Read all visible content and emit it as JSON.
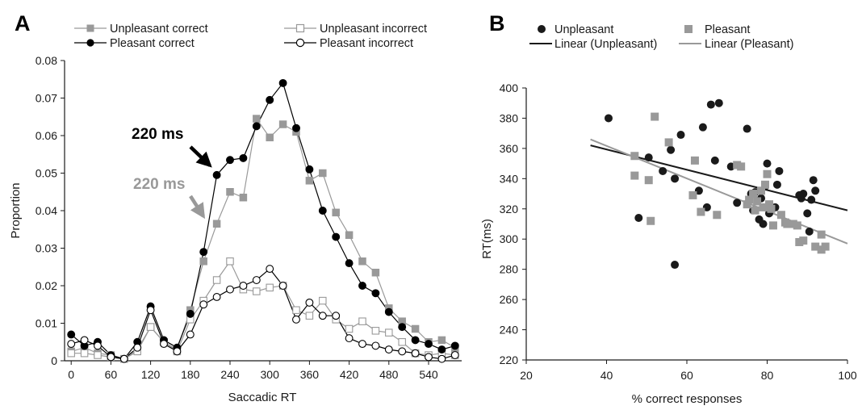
{
  "chart_data": [
    {
      "panel_label": "A",
      "type": "line",
      "xlabel": "Saccadic RT",
      "ylabel": "Proportion",
      "xlim": [
        -10,
        590
      ],
      "ylim": [
        0,
        0.08
      ],
      "x_ticks": [
        0,
        60,
        120,
        180,
        240,
        300,
        360,
        420,
        480,
        540
      ],
      "y_ticks": [
        0,
        0.01,
        0.02,
        0.03,
        0.04,
        0.05,
        0.06,
        0.07,
        0.08
      ],
      "y_tick_labels": [
        "0",
        "0.01",
        "0.02",
        "0.03",
        "0.04",
        "0.05",
        "0.06",
        "0.07",
        "0.08"
      ],
      "grid": false,
      "legend_position": "top",
      "x": [
        0,
        20,
        40,
        60,
        80,
        100,
        120,
        140,
        160,
        180,
        200,
        220,
        240,
        260,
        280,
        300,
        320,
        340,
        360,
        380,
        400,
        420,
        440,
        460,
        480,
        500,
        520,
        540,
        560,
        580
      ],
      "series": [
        {
          "name": "Unpleasant correct",
          "color": "#999999",
          "marker": "square-filled",
          "values": [
            0.0025,
            0.0035,
            0.002,
            0.0015,
            0.0005,
            0.003,
            0.009,
            0.005,
            0.003,
            0.0135,
            0.0265,
            0.0365,
            0.045,
            0.0435,
            0.0645,
            0.0595,
            0.063,
            0.061,
            0.048,
            0.05,
            0.0395,
            0.0335,
            0.0265,
            0.0235,
            0.014,
            0.0105,
            0.0085,
            0.005,
            0.0055,
            0.0035
          ]
        },
        {
          "name": "Unpleasant incorrect",
          "color": "#999999",
          "marker": "square-open",
          "values": [
            0.002,
            0.002,
            0.0015,
            0.001,
            0.0005,
            0.0025,
            0.009,
            0.005,
            0.0025,
            0.011,
            0.016,
            0.0215,
            0.0265,
            0.019,
            0.0185,
            0.0195,
            0.02,
            0.0135,
            0.012,
            0.016,
            0.011,
            0.0085,
            0.0105,
            0.008,
            0.0075,
            0.005,
            0.002,
            0.0015,
            0.002,
            0.0015
          ]
        },
        {
          "name": "Pleasant correct",
          "color": "#000000",
          "marker": "circle-filled",
          "values": [
            0.007,
            0.004,
            0.005,
            0.0015,
            0.0005,
            0.005,
            0.0145,
            0.0055,
            0.0035,
            0.0125,
            0.029,
            0.0495,
            0.0535,
            0.054,
            0.0625,
            0.0695,
            0.074,
            0.062,
            0.051,
            0.04,
            0.033,
            0.026,
            0.02,
            0.018,
            0.013,
            0.009,
            0.0055,
            0.0045,
            0.003,
            0.004
          ]
        },
        {
          "name": "Pleasant incorrect",
          "color": "#000000",
          "marker": "circle-open",
          "values": [
            0.0045,
            0.0055,
            0.004,
            0.001,
            0.0005,
            0.0035,
            0.0135,
            0.0045,
            0.0025,
            0.007,
            0.015,
            0.017,
            0.019,
            0.02,
            0.0215,
            0.0245,
            0.02,
            0.011,
            0.0155,
            0.012,
            0.012,
            0.006,
            0.0045,
            0.004,
            0.003,
            0.0025,
            0.002,
            0.001,
            0.0005,
            0.0015
          ]
        }
      ],
      "annotations": [
        {
          "text": "220 ms",
          "color": "#000000",
          "points_to_series": "Pleasant correct",
          "x": 220
        },
        {
          "text": "220 ms",
          "color": "#999999",
          "points_to_series": "Unpleasant correct",
          "x": 220
        }
      ]
    },
    {
      "panel_label": "B",
      "type": "scatter",
      "xlabel": "% correct responses",
      "ylabel": "RT(ms)",
      "xlim": [
        20,
        100
      ],
      "ylim": [
        220,
        400
      ],
      "x_ticks": [
        20,
        40,
        60,
        80,
        100
      ],
      "y_ticks": [
        220,
        240,
        260,
        280,
        300,
        320,
        340,
        360,
        380,
        400
      ],
      "grid": false,
      "legend_position": "top",
      "series": [
        {
          "name": "Unpleasant",
          "color": "#1a1a1a",
          "marker": "circle-filled",
          "points": [
            [
              40.5,
              380
            ],
            [
              48,
              314
            ],
            [
              50.5,
              354
            ],
            [
              54,
              345
            ],
            [
              56,
              359
            ],
            [
              57,
              283
            ],
            [
              57,
              340
            ],
            [
              58.5,
              369
            ],
            [
              63,
              332
            ],
            [
              64,
              374
            ],
            [
              65,
              321
            ],
            [
              66,
              389
            ],
            [
              67,
              352
            ],
            [
              68,
              390
            ],
            [
              71,
              348
            ],
            [
              72.5,
              324
            ],
            [
              75,
              373
            ],
            [
              76,
              330
            ],
            [
              76.5,
              319
            ],
            [
              77,
              331
            ],
            [
              78,
              313
            ],
            [
              78.5,
              327
            ],
            [
              79,
              310
            ],
            [
              79.5,
              335
            ],
            [
              80,
              350
            ],
            [
              80.5,
              317
            ],
            [
              82,
              321
            ],
            [
              82.5,
              336
            ],
            [
              83,
              345
            ],
            [
              88,
              329
            ],
            [
              88.5,
              327
            ],
            [
              89,
              330
            ],
            [
              90,
              317
            ],
            [
              90.5,
              305
            ],
            [
              91,
              326
            ],
            [
              91.5,
              339
            ],
            [
              92,
              332
            ]
          ]
        },
        {
          "name": "Pleasant",
          "color": "#999999",
          "marker": "square-filled",
          "points": [
            [
              47,
              355
            ],
            [
              47,
              342
            ],
            [
              50.5,
              339
            ],
            [
              51,
              312
            ],
            [
              52,
              381
            ],
            [
              55.5,
              364
            ],
            [
              61.5,
              329
            ],
            [
              62,
              352
            ],
            [
              63.5,
              318
            ],
            [
              67.5,
              316
            ],
            [
              72.5,
              349
            ],
            [
              73.5,
              348
            ],
            [
              75,
              323
            ],
            [
              75.5,
              326
            ],
            [
              76.5,
              330
            ],
            [
              77,
              319
            ],
            [
              77.5,
              325
            ],
            [
              78.5,
              332
            ],
            [
              79,
              321
            ],
            [
              79.5,
              336
            ],
            [
              80,
              343
            ],
            [
              80.5,
              323
            ],
            [
              81,
              320
            ],
            [
              81.5,
              309
            ],
            [
              83.5,
              316
            ],
            [
              84.5,
              311
            ],
            [
              85,
              310
            ],
            [
              86.5,
              310
            ],
            [
              87.5,
              309
            ],
            [
              88,
              298
            ],
            [
              89,
              299
            ],
            [
              92,
              295
            ],
            [
              93.5,
              303
            ],
            [
              93.5,
              293
            ],
            [
              94.5,
              295
            ]
          ]
        }
      ],
      "trendlines": [
        {
          "name": "Linear (Unpleasant)",
          "color": "#1a1a1a",
          "x": [
            36,
            100
          ],
          "y": [
            362,
            319
          ]
        },
        {
          "name": "Linear (Pleasant)",
          "color": "#999999",
          "x": [
            36,
            100
          ],
          "y": [
            366,
            297
          ]
        }
      ]
    }
  ]
}
